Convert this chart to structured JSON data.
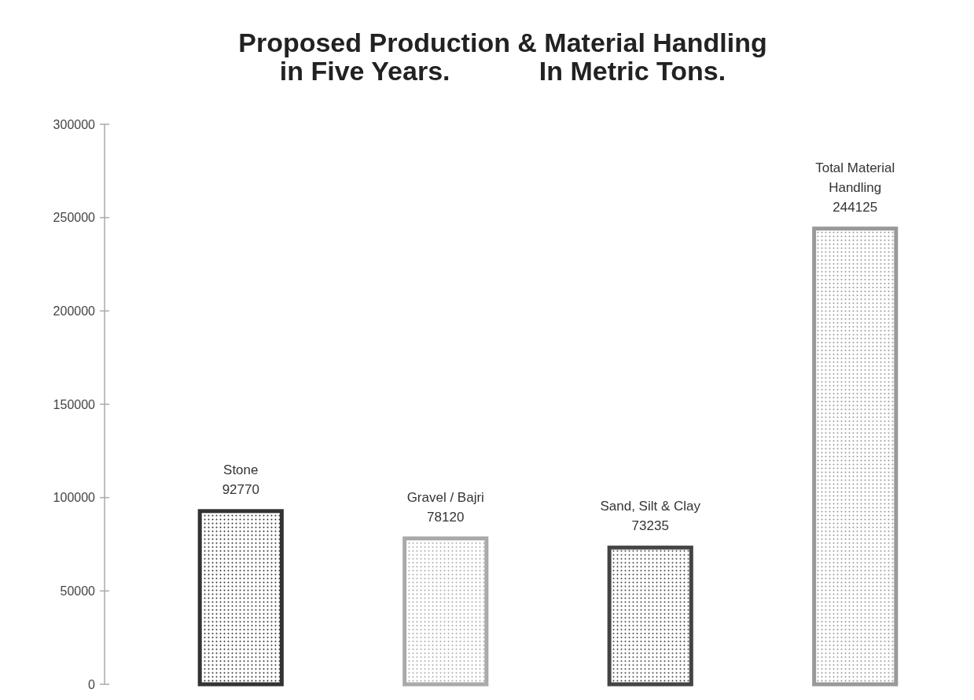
{
  "chart_data": {
    "type": "bar",
    "title": "Proposed Production & Material Handling\nin Five Years.            In Metric Tons.",
    "categories": [
      "Stone",
      "Gravel / Bajri",
      "Sand, Silt & Clay",
      "Total Material Handling"
    ],
    "values": [
      92770,
      78120,
      73235,
      244125
    ],
    "colors": [
      "#333333",
      "#aaaaaa",
      "#444444",
      "#999999"
    ],
    "ylim": [
      0,
      300000
    ],
    "yticks": [
      0,
      50000,
      100000,
      150000,
      200000,
      250000,
      300000
    ],
    "data_labels": true,
    "grid": false
  }
}
